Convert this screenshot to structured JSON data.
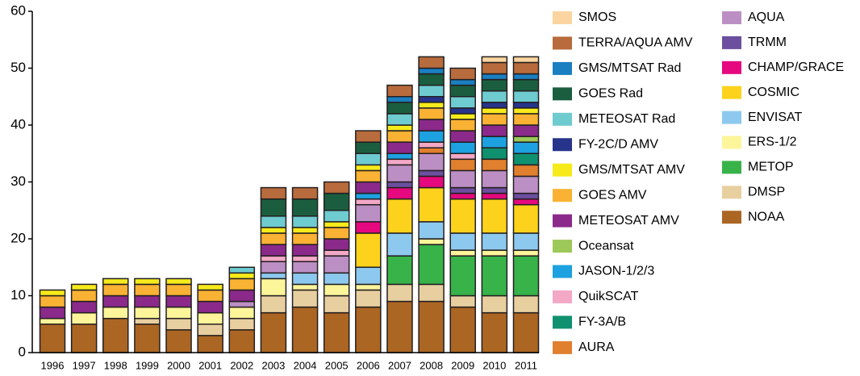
{
  "chart_data": {
    "type": "stacked-bar",
    "categories": [
      "1996",
      "1997",
      "1998",
      "1999",
      "2000",
      "2001",
      "2002",
      "2003",
      "2004",
      "2005",
      "2006",
      "2007",
      "2008",
      "2009",
      "2010",
      "2011"
    ],
    "ylim": [
      0,
      60
    ],
    "yticks": [
      0,
      10,
      20,
      30,
      40,
      50,
      60
    ],
    "series": [
      {
        "name": "NOAA",
        "color": "#ab6623",
        "values": [
          5,
          5,
          6,
          5,
          4,
          3,
          4,
          7,
          8,
          7,
          8,
          9,
          9,
          8,
          7,
          7
        ]
      },
      {
        "name": "DMSP",
        "color": "#e8cfa0",
        "values": [
          0,
          0,
          0,
          1,
          2,
          2,
          2,
          3,
          3,
          3,
          3,
          3,
          3,
          2,
          3,
          3
        ]
      },
      {
        "name": "METOP",
        "color": "#37b34a",
        "values": [
          0,
          0,
          0,
          0,
          0,
          0,
          0,
          0,
          0,
          0,
          0,
          5,
          7,
          7,
          7,
          7
        ]
      },
      {
        "name": "ERS-1/2",
        "color": "#fdf59a",
        "values": [
          1,
          2,
          2,
          2,
          2,
          2,
          2,
          3,
          1,
          2,
          1,
          0,
          1,
          1,
          1,
          1
        ]
      },
      {
        "name": "ENVISAT",
        "color": "#8dc9ee",
        "values": [
          0,
          0,
          0,
          0,
          0,
          0,
          0,
          1,
          2,
          2,
          3,
          4,
          3,
          3,
          3,
          3
        ]
      },
      {
        "name": "COSMIC",
        "color": "#fdd21c",
        "values": [
          0,
          0,
          0,
          0,
          0,
          0,
          0,
          0,
          0,
          0,
          6,
          6,
          6,
          6,
          6,
          5
        ]
      },
      {
        "name": "CHAMP/GRACE",
        "color": "#e5087e",
        "values": [
          0,
          0,
          0,
          0,
          0,
          0,
          0,
          0,
          0,
          0,
          2,
          2,
          2,
          1,
          1,
          1
        ]
      },
      {
        "name": "TRMM",
        "color": "#6c4f9f",
        "values": [
          0,
          0,
          0,
          0,
          0,
          0,
          0,
          0,
          0,
          0,
          0,
          1,
          1,
          1,
          1,
          1
        ]
      },
      {
        "name": "AQUA",
        "color": "#bc8fc4",
        "values": [
          0,
          0,
          0,
          0,
          0,
          0,
          1,
          2,
          2,
          3,
          3,
          3,
          3,
          3,
          3,
          3
        ]
      },
      {
        "name": "AURA",
        "color": "#e07f2e",
        "values": [
          0,
          0,
          0,
          0,
          0,
          0,
          0,
          0,
          0,
          0,
          0,
          0,
          1,
          2,
          2,
          2
        ]
      },
      {
        "name": "FY-3A/B",
        "color": "#0f9170",
        "values": [
          0,
          0,
          0,
          0,
          0,
          0,
          0,
          0,
          0,
          0,
          0,
          0,
          0,
          0,
          2,
          2
        ]
      },
      {
        "name": "QuikSCAT",
        "color": "#f3a8c6",
        "values": [
          0,
          0,
          0,
          0,
          0,
          0,
          0,
          1,
          1,
          1,
          1,
          1,
          1,
          1,
          0,
          0
        ]
      },
      {
        "name": "JASON-1/2/3",
        "color": "#1da1e0",
        "values": [
          0,
          0,
          0,
          0,
          0,
          0,
          0,
          0,
          0,
          0,
          1,
          1,
          2,
          2,
          2,
          2
        ]
      },
      {
        "name": "Oceansat",
        "color": "#9dc85a",
        "values": [
          0,
          0,
          0,
          0,
          0,
          0,
          0,
          0,
          0,
          0,
          0,
          0,
          0,
          0,
          0,
          1
        ]
      },
      {
        "name": "METEOSAT AMV",
        "color": "#8b2a8b",
        "values": [
          2,
          2,
          2,
          2,
          2,
          2,
          2,
          2,
          2,
          2,
          2,
          2,
          2,
          2,
          2,
          2
        ]
      },
      {
        "name": "GOES AMV",
        "color": "#f9b233",
        "values": [
          2,
          2,
          2,
          2,
          2,
          2,
          2,
          2,
          2,
          2,
          2,
          2,
          2,
          2,
          2,
          2
        ]
      },
      {
        "name": "GMS/MTSAT AMV",
        "color": "#f6ea1b",
        "values": [
          1,
          1,
          1,
          1,
          1,
          1,
          1,
          1,
          1,
          1,
          1,
          1,
          1,
          1,
          1,
          1
        ]
      },
      {
        "name": "FY-2C/D AMV",
        "color": "#27348b",
        "values": [
          0,
          0,
          0,
          0,
          0,
          0,
          0,
          0,
          0,
          0,
          0,
          0,
          1,
          1,
          1,
          1
        ]
      },
      {
        "name": "METEOSAT Rad",
        "color": "#6ecbd0",
        "values": [
          0,
          0,
          0,
          0,
          0,
          0,
          1,
          2,
          2,
          2,
          2,
          2,
          2,
          2,
          2,
          2
        ]
      },
      {
        "name": "GOES Rad",
        "color": "#1b5e3f",
        "values": [
          0,
          0,
          0,
          0,
          0,
          0,
          0,
          3,
          3,
          3,
          2,
          2,
          2,
          2,
          2,
          2
        ]
      },
      {
        "name": "GMS/MTSAT Rad",
        "color": "#1a7fc1",
        "values": [
          0,
          0,
          0,
          0,
          0,
          0,
          0,
          0,
          0,
          0,
          0,
          1,
          1,
          1,
          1,
          1
        ]
      },
      {
        "name": "TERRA/AQUA AMV",
        "color": "#b86b3c",
        "values": [
          0,
          0,
          0,
          0,
          0,
          0,
          0,
          2,
          2,
          2,
          2,
          2,
          2,
          2,
          2,
          2
        ]
      },
      {
        "name": "SMOS",
        "color": "#fbd5a0",
        "values": [
          0,
          0,
          0,
          0,
          0,
          0,
          0,
          0,
          0,
          0,
          0,
          0,
          0,
          0,
          1,
          1
        ]
      }
    ]
  }
}
